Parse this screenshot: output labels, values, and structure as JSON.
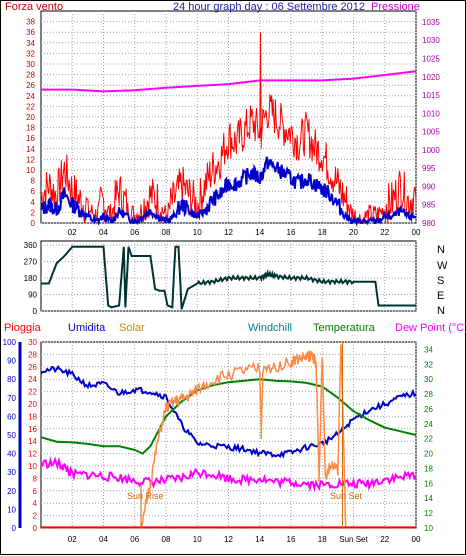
{
  "colors": {
    "wind": "#ff0000",
    "gust": "#ff0000",
    "wind_avg": "#0000cc",
    "pressure": "#ff00ff",
    "direction": "#003333",
    "rain": "#ff0000",
    "humidity": "#0000cc",
    "solar": "#ff8844",
    "windchill": "#008080",
    "temperature": "#008000",
    "dewpoint": "#ff00ff",
    "grid": "#9aa2aa",
    "axis_left1": "#cc0000",
    "axis_right1": "#aa00aa",
    "axis_left3a": "#ff0000",
    "axis_left3b": "#0000cc",
    "axis_right3": "#008000"
  },
  "labels": {
    "forza_vento": "Forza vento",
    "title": "24 hour graph day : 06 Settembre 2012",
    "pressione": "Pressione",
    "pioggia": "Pioggia",
    "umidita": "Umidita",
    "solar": "Solar",
    "windchill": "Windchill",
    "temperatura": "Temperatura",
    "dewpoint": "Dew Point (°C)",
    "sunrise": "Sun Rise",
    "sunset": "Sun Set",
    "sunset_axis": "Sun Set",
    "compass": [
      "N",
      "W",
      "S",
      "E",
      "N"
    ]
  },
  "chart_data": [
    {
      "type": "line",
      "name": "wind-and-pressure",
      "x_ticks": [
        "02",
        "04",
        "06",
        "08",
        "10",
        "12",
        "14",
        "16",
        "18",
        "20",
        "22",
        "00"
      ],
      "y_left_ticks": [
        "0",
        "2",
        "4",
        "6",
        "8",
        "10",
        "12",
        "14",
        "16",
        "18",
        "20",
        "22",
        "24",
        "26",
        "28",
        "30",
        "32",
        "34",
        "36",
        "38"
      ],
      "y_left_range": [
        0,
        40
      ],
      "y_right_ticks": [
        "980",
        "985",
        "990",
        "995",
        "1000",
        "1005",
        "1010",
        "1015",
        "1020",
        "1025",
        "1030",
        "1035"
      ],
      "y_right_range": [
        980,
        1038
      ],
      "x_range": [
        0,
        24
      ],
      "wind": {
        "x": [
          0,
          0.5,
          1,
          1.5,
          2,
          2.5,
          3,
          3.5,
          4,
          4.5,
          5,
          5.5,
          6,
          6.5,
          7,
          7.5,
          8,
          8.5,
          9,
          9.5,
          10,
          10.5,
          11,
          11.5,
          12,
          12.5,
          13,
          13.5,
          14,
          14.5,
          15,
          15.5,
          16,
          16.5,
          17,
          17.5,
          18,
          18.5,
          19,
          19.5,
          20,
          20.5,
          21,
          21.5,
          22,
          22.5,
          23,
          23.5,
          24
        ],
        "y": [
          4,
          6,
          4,
          9,
          5,
          3,
          2,
          1,
          3,
          1,
          5,
          2,
          1,
          2,
          4,
          3,
          1,
          3,
          6,
          4,
          2,
          6,
          9,
          11,
          15,
          14,
          16,
          18,
          16,
          20,
          19,
          17,
          16,
          14,
          16,
          13,
          12,
          9,
          6,
          3,
          1,
          0,
          1,
          1,
          2,
          3,
          6,
          3,
          4
        ]
      },
      "wind_avg": {
        "x": [
          0,
          0.5,
          1,
          1.5,
          2,
          2.5,
          3,
          3.5,
          4,
          4.5,
          5,
          5.5,
          6,
          6.5,
          7,
          7.5,
          8,
          8.5,
          9,
          9.5,
          10,
          10.5,
          11,
          11.5,
          12,
          12.5,
          13,
          13.5,
          14,
          14.5,
          15,
          15.5,
          16,
          16.5,
          17,
          17.5,
          18,
          18.5,
          19,
          19.5,
          20,
          20.5,
          21,
          21.5,
          22,
          22.5,
          23,
          23.5,
          24
        ],
        "y": [
          2,
          3,
          2,
          5,
          3,
          2,
          1,
          0,
          1,
          0,
          2,
          1,
          0,
          1,
          2,
          1,
          0,
          1,
          3,
          2,
          1,
          2,
          4,
          5,
          7,
          7,
          8,
          9,
          8,
          11,
          10,
          9,
          8,
          7,
          8,
          7,
          6,
          5,
          3,
          1,
          0,
          0,
          0,
          0,
          1,
          1,
          2,
          1,
          1
        ]
      },
      "wind_peak": {
        "x": 14.05,
        "y": 36
      },
      "pressure": {
        "x": [
          0,
          2,
          4,
          6,
          8,
          10,
          12,
          14,
          16,
          18,
          20,
          22,
          24
        ],
        "y": [
          1016.5,
          1016.5,
          1016,
          1016.3,
          1017,
          1017.5,
          1018,
          1019,
          1019,
          1019,
          1019.5,
          1020.5,
          1021.5
        ]
      }
    },
    {
      "type": "line",
      "name": "wind-direction",
      "y_ticks": [
        "360",
        "270",
        "180",
        "90",
        "0"
      ],
      "y_range": [
        0,
        360
      ],
      "x_ticks": [
        "02",
        "04",
        "06",
        "08",
        "10",
        "12",
        "14",
        "16",
        "18",
        "20",
        "22",
        "00"
      ],
      "direction": {
        "x": [
          0,
          0.5,
          1,
          1.5,
          2,
          2.5,
          3,
          3.5,
          4,
          4.3,
          4.5,
          5,
          5.3,
          5.4,
          5.6,
          5.8,
          6,
          6.5,
          7,
          7.3,
          7.6,
          7.9,
          8.1,
          8.4,
          8.6,
          8.8,
          9,
          9.4,
          10,
          11,
          12,
          13,
          14,
          14.5,
          15,
          16,
          17,
          18,
          19,
          20,
          21,
          21.4,
          21.6,
          22,
          23,
          24
        ],
        "y": [
          150,
          150,
          260,
          300,
          350,
          350,
          350,
          350,
          350,
          30,
          20,
          30,
          350,
          20,
          350,
          300,
          300,
          300,
          300,
          120,
          110,
          110,
          30,
          20,
          350,
          350,
          10,
          120,
          150,
          160,
          180,
          180,
          180,
          200,
          190,
          180,
          180,
          160,
          160,
          160,
          160,
          160,
          30,
          30,
          30,
          30
        ]
      }
    },
    {
      "type": "line",
      "name": "temperature-humidity-solar",
      "x_ticks": [
        "02",
        "04",
        "06",
        "08",
        "10",
        "12",
        "14",
        "16",
        "18",
        "Sun Set",
        "22",
        "00"
      ],
      "y_left1_ticks": [
        "0",
        "2",
        "4",
        "6",
        "8",
        "10",
        "12",
        "14",
        "16",
        "18",
        "20",
        "22",
        "24",
        "26",
        "28",
        "30"
      ],
      "y_left1_range": [
        0,
        30
      ],
      "y_left2_ticks": [
        "0",
        "10",
        "20",
        "30",
        "40",
        "50",
        "60",
        "70",
        "80",
        "90",
        "100"
      ],
      "y_left2_range": [
        0,
        100
      ],
      "y_right_ticks": [
        "10",
        "12",
        "14",
        "16",
        "18",
        "20",
        "22",
        "24",
        "26",
        "28",
        "30",
        "32",
        "34"
      ],
      "y_right_range": [
        10,
        35
      ],
      "temperature": {
        "x": [
          0,
          1,
          2,
          3,
          4,
          5,
          6,
          6.5,
          7,
          7.5,
          8,
          9,
          10,
          11,
          12,
          13,
          14,
          15,
          16,
          17,
          18,
          19,
          20,
          21,
          22,
          23,
          24
        ],
        "y": [
          22.2,
          21.6,
          21.5,
          21.3,
          21,
          21,
          20.5,
          20,
          21,
          23,
          25,
          27,
          28.5,
          29.2,
          29.6,
          29.8,
          30,
          29.8,
          29.7,
          29.5,
          29,
          27.5,
          25.7,
          24.5,
          23.5,
          23,
          22.5
        ]
      },
      "humidity": {
        "x": [
          0,
          1,
          2,
          3,
          4,
          5,
          6,
          7,
          8,
          9,
          10,
          11,
          12,
          13,
          14,
          15,
          16,
          17,
          18,
          19,
          20,
          21,
          22,
          23,
          24
        ],
        "y": [
          84,
          85,
          82,
          76,
          77,
          72,
          74,
          73,
          70,
          55,
          45,
          44,
          43,
          42,
          40,
          39,
          40,
          43,
          45,
          50,
          58,
          63,
          66,
          70,
          72
        ]
      },
      "dewpoint": {
        "x": [
          0,
          1,
          1.5,
          2,
          3,
          4,
          5,
          6,
          7,
          8,
          9,
          10,
          11,
          12,
          13,
          14,
          15,
          16,
          17,
          18,
          19,
          20,
          21,
          22,
          23,
          24
        ],
        "y": [
          18.5,
          18.5,
          18,
          17,
          17,
          16.8,
          16.6,
          16.2,
          16,
          16.2,
          16.5,
          17.3,
          17.1,
          16.5,
          16.3,
          16.5,
          16,
          16,
          15.8,
          15.6,
          15.8,
          15.7,
          15.8,
          16.4,
          16.6,
          17
        ]
      },
      "solar": {
        "x": [
          6.4,
          6.6,
          7,
          7.5,
          8,
          8.5,
          9,
          9.5,
          10,
          11,
          12,
          13,
          14,
          14.1,
          14.2,
          15,
          16,
          16.5,
          17,
          17.2,
          17.4,
          17.6,
          17.8,
          18,
          18.2,
          18.5,
          19,
          19.2,
          19.5
        ],
        "y": [
          0,
          2,
          7,
          14,
          19,
          20,
          20.5,
          21,
          22,
          23.5,
          24.5,
          25,
          25.4,
          15,
          25,
          25.8,
          26.5,
          27,
          27.3,
          27.5,
          27.6,
          26,
          8,
          28,
          8,
          10,
          9,
          30,
          0
        ]
      },
      "rain": {
        "x": [
          0,
          24
        ],
        "y": [
          0.1,
          0.1
        ]
      },
      "sunrise_x": 6.4,
      "sunset_x": 19.3
    }
  ]
}
